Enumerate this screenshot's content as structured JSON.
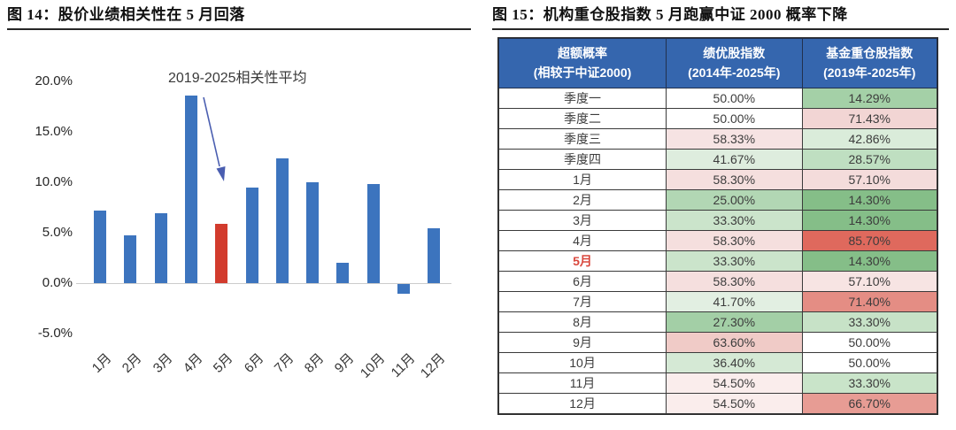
{
  "chart_data": [
    {
      "type": "bar",
      "title": "图 14：股价业绩相关性在 5 月回落",
      "annotation": "2019-2025相关性平均",
      "categories": [
        "1月",
        "2月",
        "3月",
        "4月",
        "5月",
        "6月",
        "7月",
        "8月",
        "9月",
        "10月",
        "11月",
        "12月"
      ],
      "values": [
        7.2,
        4.7,
        6.9,
        18.6,
        5.9,
        9.5,
        12.4,
        10.0,
        2.0,
        9.8,
        -1.0,
        5.4
      ],
      "unit": "%",
      "bar_color": "#3c74be",
      "highlight_index": 4,
      "highlight_color": "#d23b2d",
      "arrow_color": "#4a5eb0",
      "yticks": [
        {
          "label": "20.0%",
          "value": 20
        },
        {
          "label": "15.0%",
          "value": 15
        },
        {
          "label": "10.0%",
          "value": 10
        },
        {
          "label": "5.0%",
          "value": 5
        },
        {
          "label": "0.0%",
          "value": 0
        },
        {
          "label": "-5.0%",
          "value": -5
        }
      ],
      "ylim": [
        -5,
        20
      ],
      "grid": false,
      "legend": "none",
      "axis_line_color": "#cccccc"
    },
    {
      "type": "table",
      "title": "图 15：机构重仓股指数 5 月跑赢中证 2000 概率下降",
      "header_bg": "#3566ae",
      "header_text_color": "#ffffff",
      "highlight_label_color": "#d9473d",
      "columns": [
        {
          "line1": "超额概率",
          "line2": "(相较于中证2000)"
        },
        {
          "line1": "绩优股指数",
          "line2": "(2014年-2025年)"
        },
        {
          "line1": "基金重仓股指数",
          "line2": "(2019年-2025年)"
        }
      ],
      "rows": [
        {
          "label": "季度一",
          "highlight": false,
          "cells": [
            {
              "text": "50.00%",
              "bg": "#ffffff"
            },
            {
              "text": "14.29%",
              "bg": "#a4d0a7"
            }
          ]
        },
        {
          "label": "季度二",
          "highlight": false,
          "cells": [
            {
              "text": "50.00%",
              "bg": "#ffffff"
            },
            {
              "text": "71.43%",
              "bg": "#f2d5d4"
            }
          ]
        },
        {
          "label": "季度三",
          "highlight": false,
          "cells": [
            {
              "text": "58.33%",
              "bg": "#f6e3e3"
            },
            {
              "text": "42.86%",
              "bg": "#daecda"
            }
          ]
        },
        {
          "label": "季度四",
          "highlight": false,
          "cells": [
            {
              "text": "41.67%",
              "bg": "#deedde"
            },
            {
              "text": "28.57%",
              "bg": "#bfdfc1"
            }
          ]
        },
        {
          "label": "1月",
          "highlight": false,
          "cells": [
            {
              "text": "58.30%",
              "bg": "#f5dfde"
            },
            {
              "text": "57.10%",
              "bg": "#f4dcdb"
            }
          ]
        },
        {
          "label": "2月",
          "highlight": false,
          "cells": [
            {
              "text": "25.00%",
              "bg": "#b2d7b4"
            },
            {
              "text": "14.30%",
              "bg": "#85be88"
            }
          ]
        },
        {
          "label": "3月",
          "highlight": false,
          "cells": [
            {
              "text": "33.30%",
              "bg": "#cbe4cb"
            },
            {
              "text": "14.30%",
              "bg": "#85be88"
            }
          ]
        },
        {
          "label": "4月",
          "highlight": false,
          "cells": [
            {
              "text": "58.30%",
              "bg": "#f5dfde"
            },
            {
              "text": "85.70%",
              "bg": "#df695d"
            }
          ]
        },
        {
          "label": "5月",
          "highlight": true,
          "cells": [
            {
              "text": "33.30%",
              "bg": "#cbe4cb"
            },
            {
              "text": "14.30%",
              "bg": "#85be88"
            }
          ]
        },
        {
          "label": "6月",
          "highlight": false,
          "cells": [
            {
              "text": "58.30%",
              "bg": "#f5dfde"
            },
            {
              "text": "57.10%",
              "bg": "#f7e4e3"
            }
          ]
        },
        {
          "label": "7月",
          "highlight": false,
          "cells": [
            {
              "text": "41.70%",
              "bg": "#e2efe2"
            },
            {
              "text": "71.40%",
              "bg": "#e48d84"
            }
          ]
        },
        {
          "label": "8月",
          "highlight": false,
          "cells": [
            {
              "text": "27.30%",
              "bg": "#a3cfa6"
            },
            {
              "text": "33.30%",
              "bg": "#c7e2c7"
            }
          ]
        },
        {
          "label": "9月",
          "highlight": false,
          "cells": [
            {
              "text": "63.60%",
              "bg": "#f0cbc7"
            },
            {
              "text": "50.00%",
              "bg": "#ffffff"
            }
          ]
        },
        {
          "label": "10月",
          "highlight": false,
          "cells": [
            {
              "text": "36.40%",
              "bg": "#d5e9d5"
            },
            {
              "text": "50.00%",
              "bg": "#ffffff"
            }
          ]
        },
        {
          "label": "11月",
          "highlight": false,
          "cells": [
            {
              "text": "54.50%",
              "bg": "#faedec"
            },
            {
              "text": "33.30%",
              "bg": "#c9e4c9"
            }
          ]
        },
        {
          "label": "12月",
          "highlight": false,
          "cells": [
            {
              "text": "54.50%",
              "bg": "#faedec"
            },
            {
              "text": "66.70%",
              "bg": "#e79c94"
            }
          ]
        }
      ]
    }
  ]
}
